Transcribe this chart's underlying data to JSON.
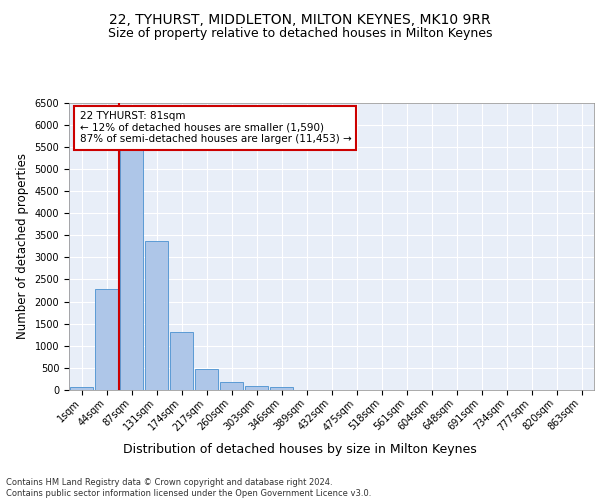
{
  "title_line1": "22, TYHURST, MIDDLETON, MILTON KEYNES, MK10 9RR",
  "title_line2": "Size of property relative to detached houses in Milton Keynes",
  "xlabel": "Distribution of detached houses by size in Milton Keynes",
  "ylabel": "Number of detached properties",
  "bar_labels": [
    "1sqm",
    "44sqm",
    "87sqm",
    "131sqm",
    "174sqm",
    "217sqm",
    "260sqm",
    "303sqm",
    "346sqm",
    "389sqm",
    "432sqm",
    "475sqm",
    "518sqm",
    "561sqm",
    "604sqm",
    "648sqm",
    "691sqm",
    "734sqm",
    "777sqm",
    "820sqm",
    "863sqm"
  ],
  "bar_values": [
    70,
    2280,
    5420,
    3380,
    1310,
    480,
    190,
    90,
    60,
    0,
    0,
    0,
    0,
    0,
    0,
    0,
    0,
    0,
    0,
    0,
    0
  ],
  "bar_color": "#aec6e8",
  "bar_edge_color": "#5b9bd5",
  "red_line_x": 1.5,
  "red_line_color": "#cc0000",
  "annotation_text": "22 TYHURST: 81sqm\n← 12% of detached houses are smaller (1,590)\n87% of semi-detached houses are larger (11,453) →",
  "annotation_box_color": "white",
  "annotation_box_edge": "#cc0000",
  "ylim": [
    0,
    6500
  ],
  "ytick_interval": 500,
  "background_color": "#e8eef8",
  "footnote": "Contains HM Land Registry data © Crown copyright and database right 2024.\nContains public sector information licensed under the Open Government Licence v3.0.",
  "title_fontsize": 10,
  "subtitle_fontsize": 9,
  "axis_label_fontsize": 8.5,
  "tick_fontsize": 7,
  "annotation_fontsize": 7.5
}
